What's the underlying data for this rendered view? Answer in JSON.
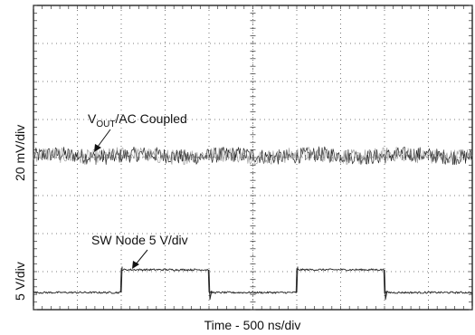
{
  "chart_data": {
    "type": "line",
    "xlabel": "Time - 500 ns/div",
    "ylabels": [
      "20 mV/div",
      "5 V/div"
    ],
    "grid": true,
    "x_divisions": 10,
    "y_divisions": 8,
    "x_unit": "div",
    "y_unit": "div",
    "series": [
      {
        "name": "VOUT/AC Coupled",
        "label_main": "V",
        "label_sub": "OUT",
        "label_rest": "/AC Coupled",
        "baseline_div": 4.05,
        "noise_pp_div": 0.25,
        "color": "#222222"
      },
      {
        "name": "SW Node 5 V/div",
        "label": "SW Node 5 V/div",
        "low_level_div": 0.45,
        "high_level_div": 1.05,
        "pulses_div": [
          [
            2.0,
            4.0
          ],
          [
            6.0,
            8.0
          ]
        ],
        "color": "#222222"
      }
    ]
  }
}
